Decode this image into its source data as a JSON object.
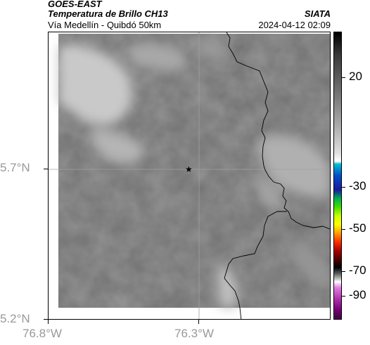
{
  "header": {
    "satellite": "GOES-EAST",
    "product": "Temperatura de Brillo CH13",
    "region": "Vía Medellín - Quibdó 50km",
    "source": "SIATA",
    "timestamp": "2024-04-12 02:09"
  },
  "axes": {
    "y_labels": [
      "5.7°N",
      "5.2°N"
    ],
    "x_labels": [
      "76.8°W",
      "76.3°W"
    ]
  },
  "marker": {
    "symbol": "★",
    "name": "station-marker"
  },
  "colorbar": {
    "labels": [
      "20",
      "-30",
      "-50",
      "-70",
      "-90"
    ],
    "units_note": "brightness temperature"
  },
  "colors": {
    "map_gray": "#6f6f6f",
    "cloud_light": "#c8c8c8",
    "border_line": "#000000",
    "grid_line": "#a0a0a0"
  }
}
